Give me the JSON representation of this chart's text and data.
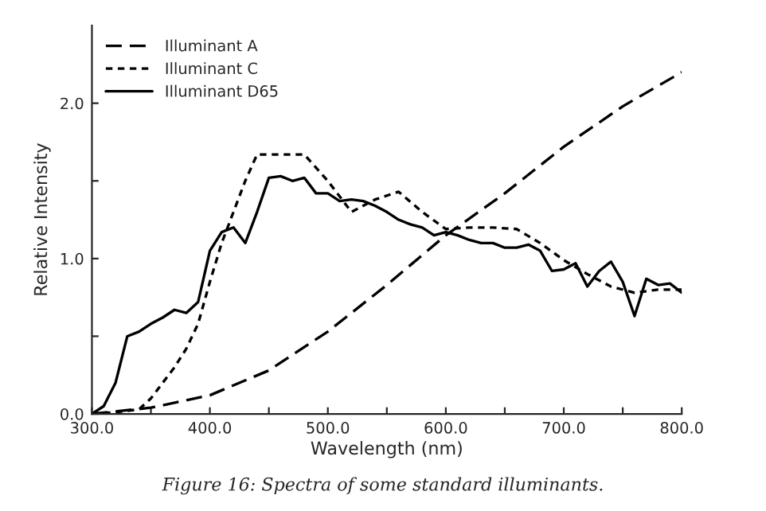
{
  "chart_data": {
    "type": "line",
    "xlabel": "Wavelength (nm)",
    "ylabel": "Relative Intensity",
    "x": [
      300,
      310,
      320,
      330,
      340,
      350,
      360,
      370,
      380,
      390,
      400,
      410,
      420,
      430,
      440,
      450,
      460,
      470,
      480,
      490,
      500,
      510,
      520,
      530,
      540,
      550,
      560,
      570,
      580,
      590,
      600,
      610,
      620,
      630,
      640,
      650,
      660,
      670,
      680,
      690,
      700,
      710,
      720,
      730,
      740,
      750,
      760,
      770,
      780,
      790,
      800
    ],
    "series": [
      {
        "name": "Illuminant A",
        "color": "#000000",
        "line_style": "dashed",
        "x": [
          300,
          350,
          400,
          450,
          500,
          550,
          600,
          650,
          700,
          750,
          800
        ],
        "values": [
          0.0,
          0.04,
          0.12,
          0.28,
          0.53,
          0.83,
          1.15,
          1.42,
          1.72,
          1.98,
          2.2
        ]
      },
      {
        "name": "Illuminant C",
        "color": "#000000",
        "line_style": "dotted",
        "x": [
          300,
          320,
          340,
          350,
          360,
          370,
          380,
          390,
          400,
          410,
          420,
          430,
          440,
          480,
          500,
          520,
          540,
          560,
          580,
          600,
          620,
          640,
          660,
          680,
          700,
          720,
          740,
          760,
          780,
          800
        ],
        "values": [
          0.0,
          0.01,
          0.03,
          0.1,
          0.2,
          0.3,
          0.42,
          0.58,
          0.85,
          1.1,
          1.3,
          1.5,
          1.67,
          1.67,
          1.5,
          1.3,
          1.38,
          1.43,
          1.3,
          1.19,
          1.2,
          1.2,
          1.19,
          1.1,
          0.99,
          0.9,
          0.82,
          0.78,
          0.8,
          0.8
        ]
      },
      {
        "name": "Illuminant D65",
        "color": "#000000",
        "line_style": "solid",
        "values": [
          0.0,
          0.05,
          0.2,
          0.5,
          0.53,
          0.58,
          0.62,
          0.67,
          0.65,
          0.72,
          1.05,
          1.17,
          1.2,
          1.1,
          1.3,
          1.52,
          1.53,
          1.5,
          1.52,
          1.42,
          1.42,
          1.37,
          1.38,
          1.37,
          1.34,
          1.3,
          1.25,
          1.22,
          1.2,
          1.15,
          1.17,
          1.15,
          1.12,
          1.1,
          1.1,
          1.07,
          1.07,
          1.09,
          1.05,
          0.92,
          0.93,
          0.97,
          0.82,
          0.92,
          0.98,
          0.85,
          0.63,
          0.87,
          0.83,
          0.84,
          0.78
        ]
      }
    ],
    "xlim": [
      300,
      800
    ],
    "xticks": [
      {
        "value": 300,
        "label": "300.0"
      },
      {
        "value": 350,
        "label": null
      },
      {
        "value": 400,
        "label": "400.0"
      },
      {
        "value": 450,
        "label": null
      },
      {
        "value": 500,
        "label": "500.0"
      },
      {
        "value": 550,
        "label": null
      },
      {
        "value": 600,
        "label": "600.0"
      },
      {
        "value": 650,
        "label": null
      },
      {
        "value": 700,
        "label": "700.0"
      },
      {
        "value": 750,
        "label": null
      },
      {
        "value": 800,
        "label": "800.0"
      }
    ],
    "ylim": [
      0,
      2.5
    ],
    "yticks": [
      {
        "value": 0,
        "label": "0.0"
      },
      {
        "value": 0.5,
        "label": null
      },
      {
        "value": 1,
        "label": "1.0"
      },
      {
        "value": 1.5,
        "label": null
      },
      {
        "value": 2,
        "label": "2.0"
      }
    ],
    "legend": "top left",
    "grid": false,
    "marker": "none",
    "annotations": [
      "Figure 16: Spectra of some standard illuminants."
    ]
  }
}
